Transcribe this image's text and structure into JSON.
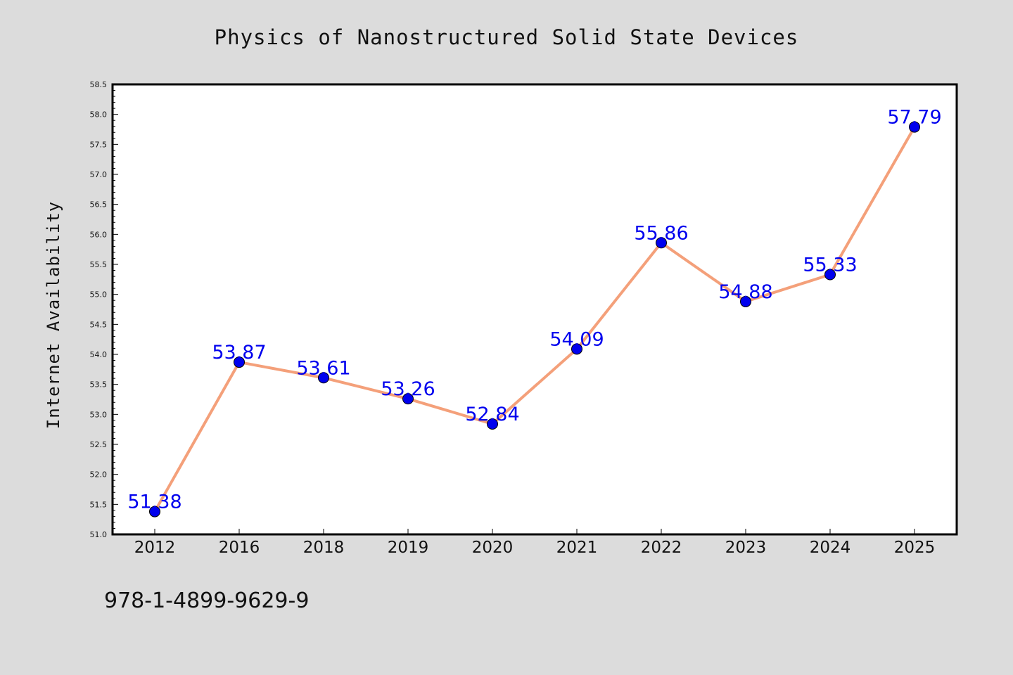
{
  "chart_data": {
    "type": "line",
    "title": "Physics of Nanostructured Solid State Devices",
    "ylabel": "Internet Availability",
    "xlabel": "",
    "categories": [
      "2012",
      "2016",
      "2018",
      "2019",
      "2020",
      "2021",
      "2022",
      "2023",
      "2024",
      "2025"
    ],
    "series": [
      {
        "values": [
          51.38,
          53.87,
          53.61,
          53.26,
          52.84,
          54.09,
          55.86,
          54.88,
          55.33,
          57.79
        ],
        "data_labels": [
          "51.38",
          "53.87",
          "53.61",
          "53.26",
          "52.84",
          "54.09",
          "55.86",
          "54.88",
          "55.33",
          "57.79"
        ],
        "line_color": "#f4a07a",
        "marker_color": "#0000ee",
        "label_color": "#0000ee"
      }
    ],
    "ylim": [
      51.0,
      58.5
    ],
    "yticks": [
      "51.0",
      "51.5",
      "52.0",
      "52.5",
      "53.0",
      "53.5",
      "54.0",
      "54.5",
      "55.0",
      "55.5",
      "56.0",
      "56.5",
      "57.0",
      "57.5",
      "58.0",
      "58.5"
    ],
    "grid": false,
    "legend": "none"
  },
  "footer": {
    "isbn": "978-1-4899-9629-9"
  },
  "colors": {
    "background": "#dcdcdc",
    "plot_background": "#ffffff",
    "axis": "#000000"
  }
}
